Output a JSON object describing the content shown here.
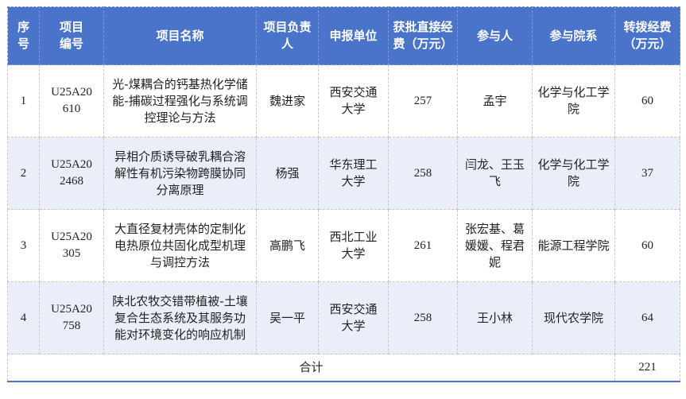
{
  "headers": [
    "序号",
    "项目编号",
    "项目名称",
    "项目负责人",
    "申报单位",
    "获批直接经费（万元）",
    "参与人",
    "参与院系",
    "转拨经费（万元）"
  ],
  "rows": [
    {
      "no": "1",
      "code": "U25A20610",
      "name": "光-煤耦合的钙基热化学储能-捕碳过程强化与系统调控理论与方法",
      "leader": "魏进家",
      "unit": "西安交通大学",
      "direct": "257",
      "members": "孟宇",
      "dept": "化学与化工学院",
      "transfer": "60"
    },
    {
      "no": "2",
      "code": "U25A202468",
      "name": "异相介质诱导破乳耦合溶解性有机污染物跨膜协同分离原理",
      "leader": "杨强",
      "unit": "华东理工大学",
      "direct": "258",
      "members": "闫龙、王玉飞",
      "dept": "化学与化工学院",
      "transfer": "37"
    },
    {
      "no": "3",
      "code": "U25A20305",
      "name": "大直径复材壳体的定制化电热原位共固化成型机理与调控方法",
      "leader": "高鹏飞",
      "unit": "西北工业大学",
      "direct": "261",
      "members": "张宏基、葛媛媛、程君妮",
      "dept": "能源工程学院",
      "transfer": "60"
    },
    {
      "no": "4",
      "code": "U25A20758",
      "name": "陕北农牧交错带植被-土壤复合生态系统及其服务功能对环境变化的响应机制",
      "leader": "吴一平",
      "unit": "西安交通大学",
      "direct": "258",
      "members": "王小林",
      "dept": "现代农学院",
      "transfer": "64"
    }
  ],
  "total": {
    "label": "合计",
    "value": "221"
  },
  "colors": {
    "header_bg": "#4a74c9",
    "alt_row_bg": "#e9eef8"
  }
}
